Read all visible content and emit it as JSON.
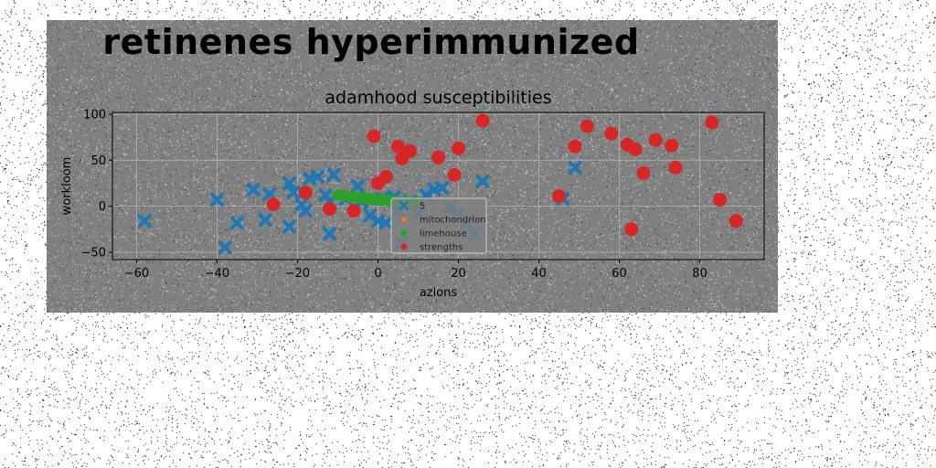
{
  "page": {
    "heading": "retinenes hyperimmunized"
  },
  "chart_data": {
    "type": "scatter",
    "title": "adamhood susceptibilities",
    "xlabel": "azlons",
    "ylabel": "workloom",
    "xlim": [
      -66,
      96
    ],
    "ylim": [
      -58,
      102
    ],
    "xticks": [
      -60,
      -40,
      -20,
      0,
      20,
      40,
      60,
      80
    ],
    "yticks": [
      -50,
      0,
      50,
      100
    ],
    "grid": true,
    "legend_position": "lower-center",
    "series": [
      {
        "name": "5",
        "marker": "x",
        "color": "#1f77b4",
        "points": [
          [
            -58,
            -16
          ],
          [
            -40,
            7
          ],
          [
            -38,
            -45
          ],
          [
            -35,
            -18
          ],
          [
            -31,
            18
          ],
          [
            -28,
            -15
          ],
          [
            -27,
            13
          ],
          [
            -22,
            25
          ],
          [
            -22,
            -22
          ],
          [
            -21,
            15
          ],
          [
            -19,
            2
          ],
          [
            -18,
            -5
          ],
          [
            -17,
            30
          ],
          [
            -15,
            32
          ],
          [
            -13,
            12
          ],
          [
            -12,
            5
          ],
          [
            -12,
            -30
          ],
          [
            -11,
            34
          ],
          [
            -8,
            8
          ],
          [
            -5,
            22
          ],
          [
            -4,
            5
          ],
          [
            -2,
            -10
          ],
          [
            0,
            -16
          ],
          [
            1,
            8
          ],
          [
            2,
            -18
          ],
          [
            4,
            10
          ],
          [
            5,
            -5
          ],
          [
            6,
            -40
          ],
          [
            8,
            5
          ],
          [
            10,
            -8
          ],
          [
            12,
            12
          ],
          [
            14,
            18
          ],
          [
            16,
            20
          ],
          [
            18,
            -2
          ],
          [
            20,
            -8
          ],
          [
            22,
            -18
          ],
          [
            24,
            -30
          ],
          [
            26,
            27
          ],
          [
            46,
            8
          ],
          [
            49,
            42
          ]
        ]
      },
      {
        "name": "mitochondrion",
        "marker": "o-small",
        "color": "#ff7f0e",
        "points": [
          [
            -7,
            12
          ],
          [
            -4,
            10
          ],
          [
            -2,
            8
          ],
          [
            0,
            7
          ],
          [
            2,
            6
          ],
          [
            4,
            5
          ]
        ]
      },
      {
        "name": "limehouse",
        "marker": "o",
        "color": "#2ca02c",
        "points": [
          [
            -10,
            12
          ],
          [
            -9,
            11
          ],
          [
            -8,
            12
          ],
          [
            -7,
            10
          ],
          [
            -6,
            11
          ],
          [
            -5,
            9
          ],
          [
            -4,
            10
          ],
          [
            -3,
            8
          ],
          [
            -2,
            9
          ],
          [
            -1,
            7
          ],
          [
            0,
            8
          ],
          [
            1,
            6
          ],
          [
            2,
            7
          ],
          [
            3,
            5
          ],
          [
            4,
            6
          ],
          [
            5,
            5
          ],
          [
            6,
            4
          ],
          [
            7,
            5
          ],
          [
            8,
            4
          ],
          [
            9,
            3
          ],
          [
            10,
            4
          ]
        ]
      },
      {
        "name": "strengths",
        "marker": "o",
        "color": "#d62728",
        "points": [
          [
            -26,
            2
          ],
          [
            -18,
            15
          ],
          [
            -12,
            -3
          ],
          [
            -6,
            -5
          ],
          [
            -1,
            76
          ],
          [
            0,
            25
          ],
          [
            2,
            32
          ],
          [
            5,
            65
          ],
          [
            6,
            52
          ],
          [
            8,
            60
          ],
          [
            15,
            53
          ],
          [
            19,
            34
          ],
          [
            20,
            63
          ],
          [
            26,
            93
          ],
          [
            45,
            11
          ],
          [
            49,
            65
          ],
          [
            52,
            87
          ],
          [
            58,
            79
          ],
          [
            62,
            67
          ],
          [
            63,
            -25
          ],
          [
            64,
            62
          ],
          [
            66,
            36
          ],
          [
            69,
            72
          ],
          [
            73,
            66
          ],
          [
            74,
            42
          ],
          [
            83,
            91
          ],
          [
            85,
            7
          ],
          [
            89,
            -16
          ]
        ]
      }
    ]
  }
}
